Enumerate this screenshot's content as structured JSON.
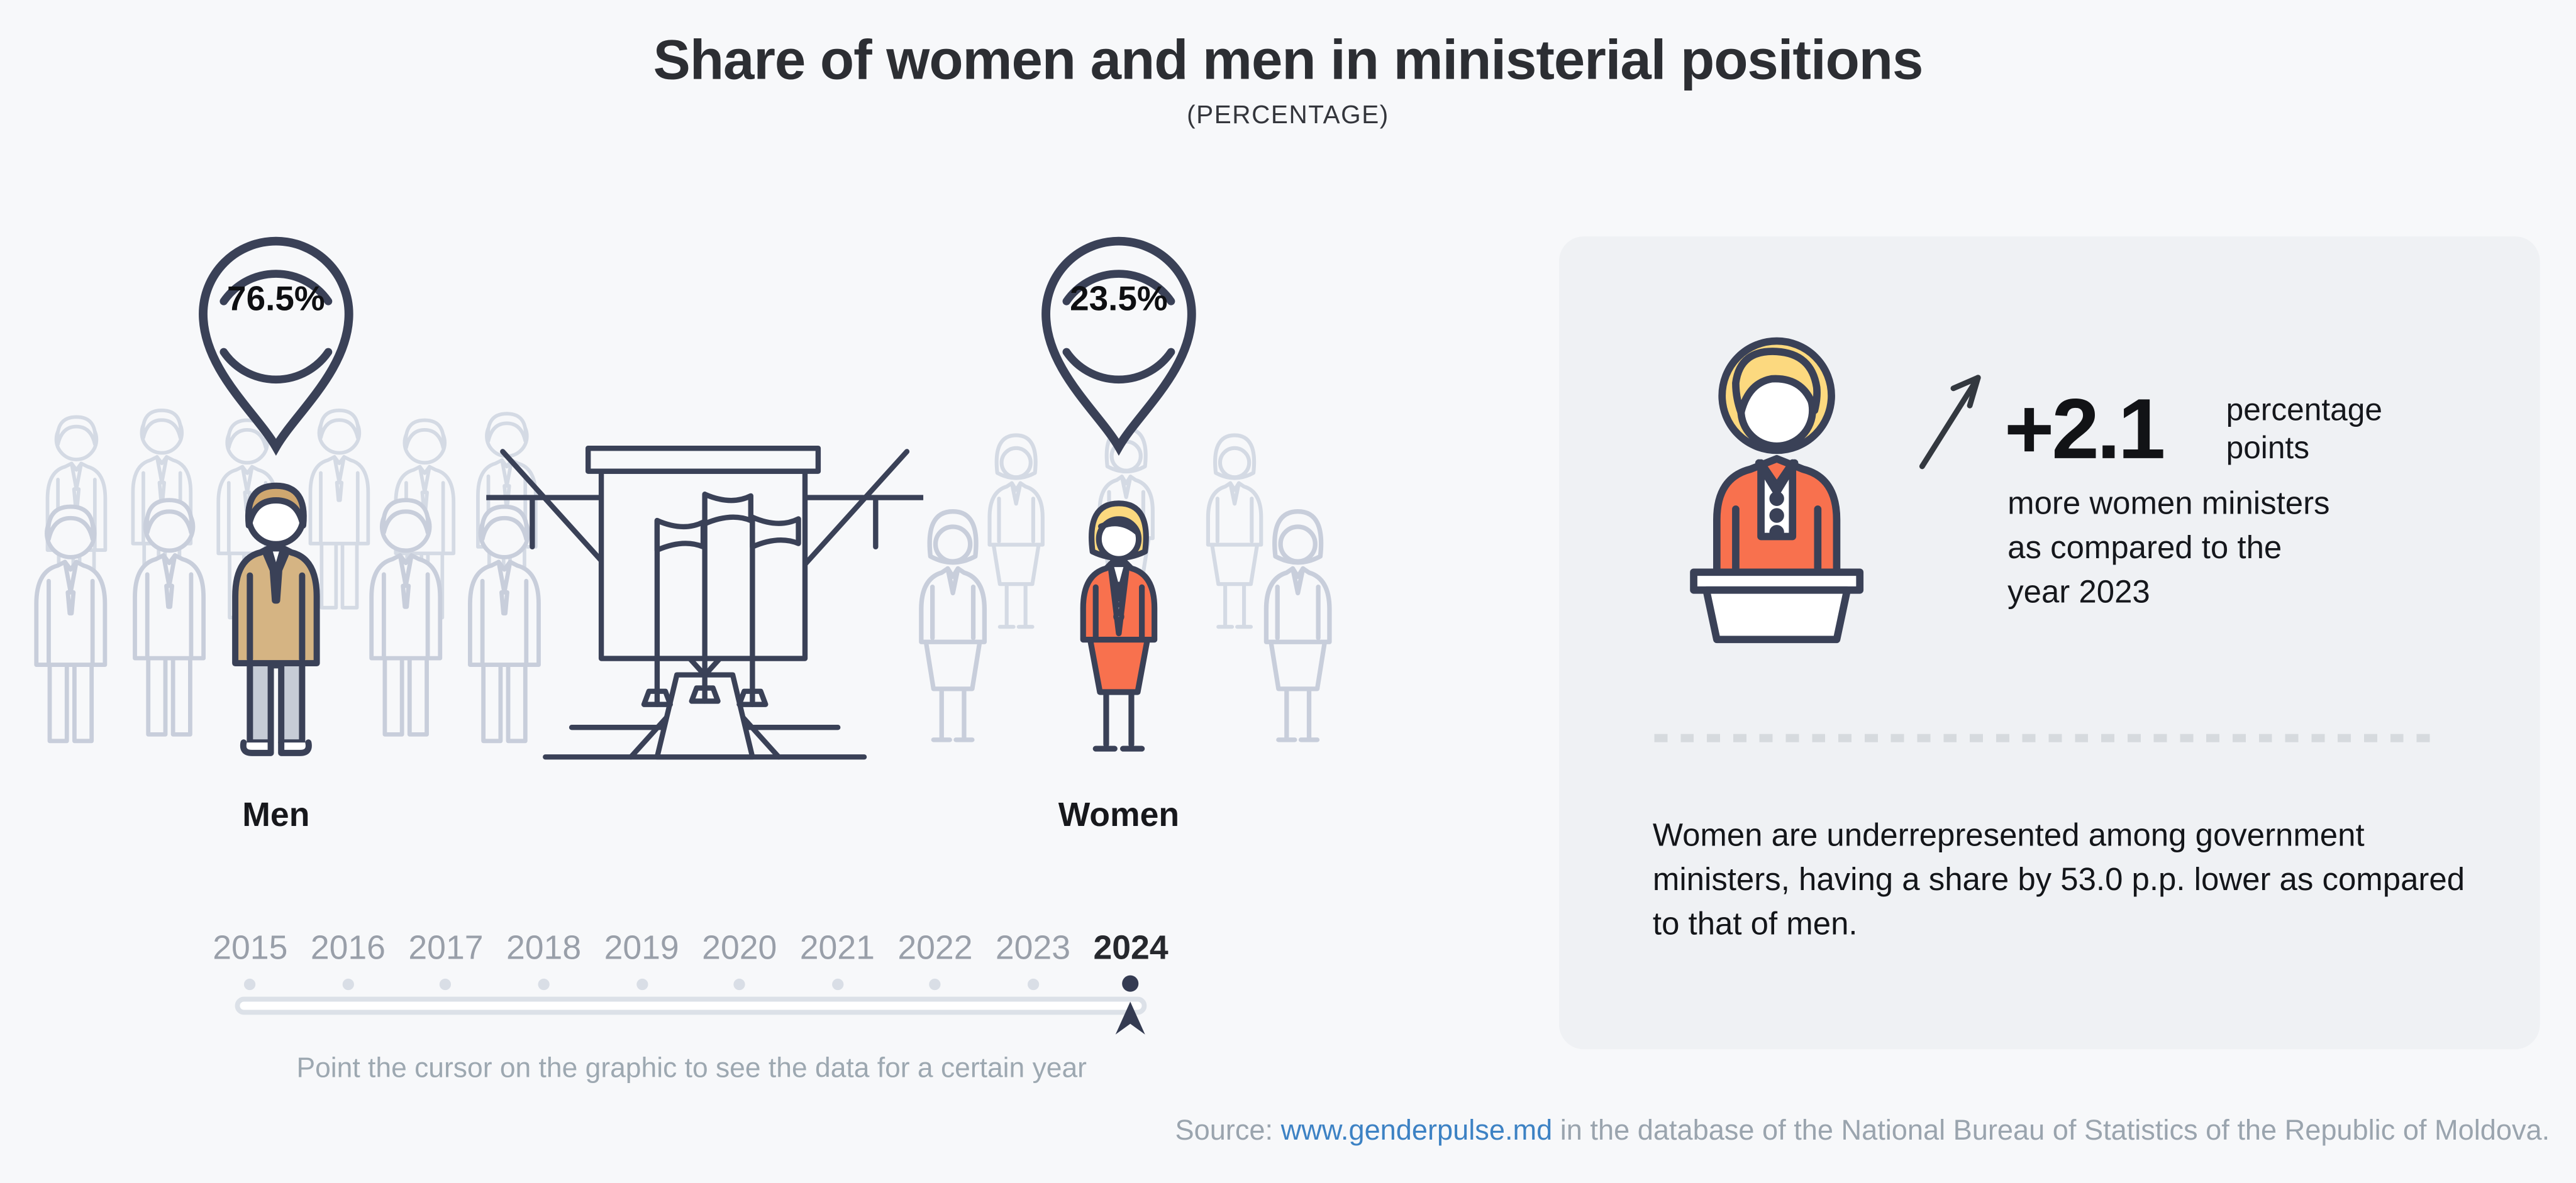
{
  "header": {
    "title": "Share of women and men in ministerial positions",
    "subtitle": "(PERCENTAGE)"
  },
  "groups": {
    "men": {
      "label": "Men",
      "share": "76.5%"
    },
    "women": {
      "label": "Women",
      "share": "23.5%"
    }
  },
  "timeline": {
    "years": [
      "2015",
      "2016",
      "2017",
      "2018",
      "2019",
      "2020",
      "2021",
      "2022",
      "2023",
      "2024"
    ],
    "selected_year": "2024",
    "hint": "Point the cursor on the graphic to see the data for a certain year"
  },
  "panel": {
    "delta_value": "+2.1",
    "delta_unit_lines": [
      "percentage",
      "points"
    ],
    "delta_description_lines": [
      "more women ministers",
      "as compared to the",
      "year 2023"
    ],
    "summary_lines": [
      "Women are underrepresented among government",
      "ministers, having a share by 53.0 p.p. lower as compared",
      "to that of men."
    ]
  },
  "footer": {
    "source_prefix": "Source: ",
    "source_link": "www.genderpulse.md",
    "source_suffix": " in the database of the National Bureau of Statistics of the Republic of Moldova."
  },
  "colors": {
    "background": "#f7f8fa",
    "card_background": "#eff1f4",
    "navy_outline": "#3a4157",
    "accent_orange": "#f8714e",
    "accent_tan": "#d5b483",
    "blonde": "#fcd97f",
    "muted_figure": "#c8cedb",
    "year_gray": "#999fa9",
    "link_blue": "#3d82c4"
  },
  "chart_data": {
    "type": "pie",
    "title": "Share of women and men in ministerial positions",
    "subtitle": "(PERCENTAGE)",
    "categories": [
      "Men",
      "Women"
    ],
    "values": [
      76.5,
      23.5
    ],
    "unit": "%",
    "selected_year": 2024,
    "timeline_years": [
      2015,
      2016,
      2017,
      2018,
      2019,
      2020,
      2021,
      2022,
      2023,
      2024
    ],
    "legend_position": "none",
    "annotations": {
      "change_vs_2023_pp": 2.1,
      "change_text": "+2.1 percentage points more women ministers as compared to the year 2023",
      "gap_pp": 53.0,
      "gap_text": "Women are underrepresented among government ministers, having a share by 53.0 p.p. lower as compared to that of men."
    }
  }
}
